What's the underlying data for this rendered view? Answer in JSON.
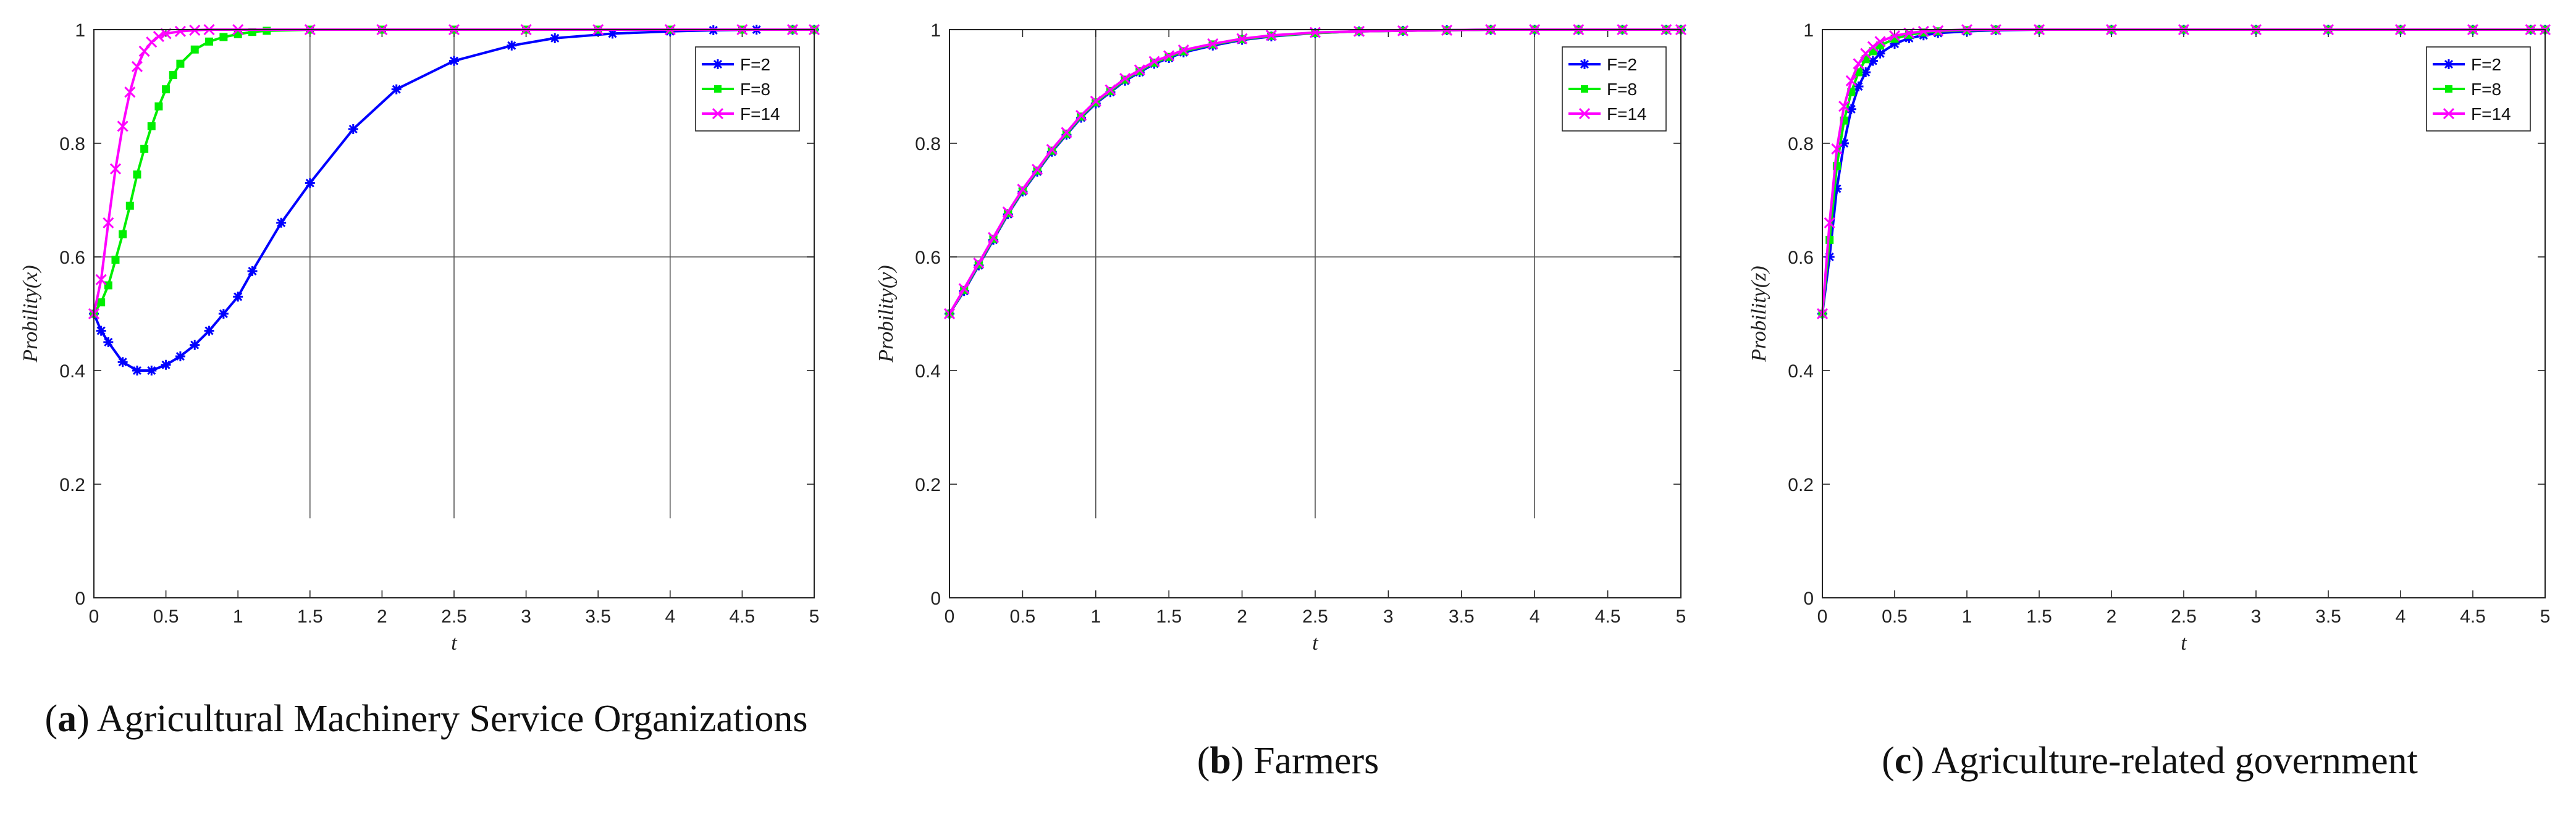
{
  "chart_data": [
    {
      "type": "line",
      "caption_letter": "a",
      "caption_text": "Agricultural Machinery Service Organizations",
      "xlabel": "t",
      "ylabel": "Probility(x)",
      "xlim": [
        0,
        5
      ],
      "ylim": [
        0,
        1
      ],
      "xticks": [
        0,
        0.5,
        1,
        1.5,
        2,
        2.5,
        3,
        3.5,
        4,
        4.5,
        5
      ],
      "xtick_labels": [
        "0",
        "0.5",
        "1",
        "1.5",
        "2",
        "2.5",
        "3",
        "3.5",
        "4",
        "4.5",
        "5"
      ],
      "yticks": [
        0,
        0.2,
        0.4,
        0.6,
        0.8,
        1
      ],
      "ytick_labels": [
        "0",
        "0.2",
        "0.4",
        "0.6",
        "0.8",
        "1"
      ],
      "ref_hline": 0.6,
      "ref_vlines": [
        1.5,
        2.5,
        4
      ],
      "ref_vline_bottom": 0.14,
      "legend": "top-right",
      "series": [
        {
          "name": "F=2",
          "color": "#0000ff",
          "marker": "star",
          "x": [
            0,
            0.05,
            0.1,
            0.2,
            0.3,
            0.4,
            0.5,
            0.6,
            0.7,
            0.8,
            0.9,
            1.0,
            1.1,
            1.3,
            1.5,
            1.8,
            2.1,
            2.5,
            2.9,
            3.2,
            3.6,
            4.0,
            4.3,
            4.6,
            4.85,
            5.0
          ],
          "y": [
            0.5,
            0.47,
            0.45,
            0.415,
            0.4,
            0.4,
            0.41,
            0.425,
            0.445,
            0.47,
            0.5,
            0.53,
            0.575,
            0.66,
            0.73,
            0.825,
            0.895,
            0.945,
            0.972,
            0.985,
            0.993,
            0.997,
            0.999,
            1.0,
            1.0,
            1.0
          ]
        },
        {
          "name": "F=8",
          "color": "#00ee00",
          "marker": "square",
          "x": [
            0,
            0.05,
            0.1,
            0.15,
            0.2,
            0.25,
            0.3,
            0.35,
            0.4,
            0.45,
            0.5,
            0.55,
            0.6,
            0.7,
            0.8,
            0.9,
            1.0,
            1.1,
            1.2,
            1.5,
            2.0,
            2.5,
            3.0,
            3.5,
            4.0,
            4.5,
            4.85,
            5.0
          ],
          "y": [
            0.5,
            0.52,
            0.55,
            0.595,
            0.64,
            0.69,
            0.745,
            0.79,
            0.83,
            0.865,
            0.895,
            0.92,
            0.94,
            0.965,
            0.979,
            0.987,
            0.992,
            0.996,
            0.998,
            1.0,
            1.0,
            1.0,
            1.0,
            1.0,
            1.0,
            1.0,
            1.0,
            1.0
          ]
        },
        {
          "name": "F=14",
          "color": "#ff00ff",
          "marker": "x",
          "x": [
            0,
            0.05,
            0.1,
            0.15,
            0.2,
            0.25,
            0.3,
            0.35,
            0.4,
            0.45,
            0.5,
            0.6,
            0.7,
            0.8,
            1.0,
            1.5,
            2.0,
            2.5,
            3.0,
            3.5,
            4.0,
            4.5,
            4.85,
            5.0
          ],
          "y": [
            0.5,
            0.56,
            0.66,
            0.755,
            0.83,
            0.89,
            0.935,
            0.962,
            0.978,
            0.988,
            0.993,
            0.997,
            0.999,
            1.0,
            1.0,
            1.0,
            1.0,
            1.0,
            1.0,
            1.0,
            1.0,
            1.0,
            1.0,
            1.0
          ]
        }
      ]
    },
    {
      "type": "line",
      "caption_letter": "b",
      "caption_text": "Farmers",
      "xlabel": "t",
      "ylabel": "Probility(y)",
      "xlim": [
        0,
        5
      ],
      "ylim": [
        0,
        1
      ],
      "xticks": [
        0,
        0.5,
        1,
        1.5,
        2,
        2.5,
        3,
        3.5,
        4,
        4.5,
        5
      ],
      "xtick_labels": [
        "0",
        "0.5",
        "1",
        "1.5",
        "2",
        "2.5",
        "3",
        "3.5",
        "4",
        "4.5",
        "5"
      ],
      "yticks": [
        0,
        0.2,
        0.4,
        0.6,
        0.8,
        1
      ],
      "ytick_labels": [
        "0",
        "0.2",
        "0.4",
        "0.6",
        "0.8",
        "1"
      ],
      "ref_hline": 0.6,
      "ref_vlines": [
        1,
        2.5,
        4
      ],
      "ref_vline_bottom": 0.14,
      "legend": "top-right",
      "series": [
        {
          "name": "F=2",
          "color": "#0000ff",
          "marker": "star",
          "x": [
            0,
            0.1,
            0.2,
            0.3,
            0.4,
            0.5,
            0.6,
            0.7,
            0.8,
            0.9,
            1.0,
            1.1,
            1.2,
            1.3,
            1.4,
            1.5,
            1.6,
            1.8,
            2.0,
            2.2,
            2.5,
            2.8,
            3.1,
            3.4,
            3.7,
            4.0,
            4.3,
            4.6,
            4.9,
            5.0
          ],
          "y": [
            0.5,
            0.54,
            0.585,
            0.63,
            0.675,
            0.715,
            0.75,
            0.785,
            0.815,
            0.845,
            0.87,
            0.89,
            0.91,
            0.925,
            0.94,
            0.95,
            0.96,
            0.972,
            0.982,
            0.988,
            0.994,
            0.997,
            0.998,
            0.999,
            1.0,
            1.0,
            1.0,
            1.0,
            1.0,
            1.0
          ]
        },
        {
          "name": "F=8",
          "color": "#00ee00",
          "marker": "square",
          "x": [
            0,
            0.1,
            0.2,
            0.3,
            0.4,
            0.5,
            0.6,
            0.7,
            0.8,
            0.9,
            1.0,
            1.1,
            1.2,
            1.3,
            1.4,
            1.5,
            1.6,
            1.8,
            2.0,
            2.2,
            2.5,
            2.8,
            3.1,
            3.4,
            3.7,
            4.0,
            4.3,
            4.6,
            4.9,
            5.0
          ],
          "y": [
            0.5,
            0.542,
            0.587,
            0.632,
            0.677,
            0.717,
            0.752,
            0.787,
            0.817,
            0.847,
            0.872,
            0.892,
            0.912,
            0.927,
            0.942,
            0.952,
            0.962,
            0.974,
            0.983,
            0.989,
            0.994,
            0.997,
            0.998,
            0.999,
            1.0,
            1.0,
            1.0,
            1.0,
            1.0,
            1.0
          ]
        },
        {
          "name": "F=14",
          "color": "#ff00ff",
          "marker": "x",
          "x": [
            0,
            0.1,
            0.2,
            0.3,
            0.4,
            0.5,
            0.6,
            0.7,
            0.8,
            0.9,
            1.0,
            1.1,
            1.2,
            1.3,
            1.4,
            1.5,
            1.6,
            1.8,
            2.0,
            2.2,
            2.5,
            2.8,
            3.1,
            3.4,
            3.7,
            4.0,
            4.3,
            4.6,
            4.9,
            5.0
          ],
          "y": [
            0.5,
            0.544,
            0.589,
            0.634,
            0.679,
            0.719,
            0.754,
            0.789,
            0.819,
            0.849,
            0.874,
            0.894,
            0.914,
            0.929,
            0.944,
            0.954,
            0.964,
            0.975,
            0.984,
            0.99,
            0.995,
            0.997,
            0.998,
            0.999,
            1.0,
            1.0,
            1.0,
            1.0,
            1.0,
            1.0
          ]
        }
      ]
    },
    {
      "type": "line",
      "caption_letter": "c",
      "caption_text": "Agriculture-related government",
      "xlabel": "t",
      "ylabel": "Probility(z)",
      "xlim": [
        0,
        5
      ],
      "ylim": [
        0,
        1
      ],
      "xticks": [
        0,
        0.5,
        1,
        1.5,
        2,
        2.5,
        3,
        3.5,
        4,
        4.5,
        5
      ],
      "xtick_labels": [
        "0",
        "0.5",
        "1",
        "1.5",
        "2",
        "2.5",
        "3",
        "3.5",
        "4",
        "4.5",
        "5"
      ],
      "yticks": [
        0,
        0.2,
        0.4,
        0.6,
        0.8,
        1
      ],
      "ytick_labels": [
        "0",
        "0.2",
        "0.4",
        "0.6",
        "0.8",
        "1"
      ],
      "legend": "top-right",
      "series": [
        {
          "name": "F=2",
          "color": "#0000ff",
          "marker": "star",
          "x": [
            0,
            0.05,
            0.1,
            0.15,
            0.2,
            0.25,
            0.3,
            0.35,
            0.4,
            0.5,
            0.6,
            0.7,
            0.8,
            1.0,
            1.2,
            1.5,
            2.0,
            2.5,
            3.0,
            3.5,
            4.0,
            4.5,
            4.9,
            5.0
          ],
          "y": [
            0.5,
            0.6,
            0.72,
            0.8,
            0.86,
            0.9,
            0.925,
            0.945,
            0.958,
            0.975,
            0.985,
            0.99,
            0.994,
            0.997,
            0.999,
            1.0,
            1.0,
            1.0,
            1.0,
            1.0,
            1.0,
            1.0,
            1.0,
            1.0
          ]
        },
        {
          "name": "F=8",
          "color": "#00ee00",
          "marker": "square",
          "x": [
            0,
            0.05,
            0.1,
            0.15,
            0.2,
            0.25,
            0.3,
            0.35,
            0.4,
            0.5,
            0.6,
            0.7,
            0.8,
            1.0,
            1.2,
            1.5,
            2.0,
            2.5,
            3.0,
            3.5,
            4.0,
            4.5,
            4.9,
            5.0
          ],
          "y": [
            0.5,
            0.63,
            0.76,
            0.84,
            0.89,
            0.925,
            0.948,
            0.962,
            0.972,
            0.984,
            0.991,
            0.995,
            0.997,
            0.999,
            1.0,
            1.0,
            1.0,
            1.0,
            1.0,
            1.0,
            1.0,
            1.0,
            1.0,
            1.0
          ]
        },
        {
          "name": "F=14",
          "color": "#ff00ff",
          "marker": "x",
          "x": [
            0,
            0.05,
            0.1,
            0.15,
            0.2,
            0.25,
            0.3,
            0.35,
            0.4,
            0.5,
            0.6,
            0.7,
            0.8,
            1.0,
            1.2,
            1.5,
            2.0,
            2.5,
            3.0,
            3.5,
            4.0,
            4.5,
            4.9,
            5.0
          ],
          "y": [
            0.5,
            0.66,
            0.79,
            0.865,
            0.91,
            0.94,
            0.958,
            0.97,
            0.979,
            0.989,
            0.994,
            0.997,
            0.998,
            1.0,
            1.0,
            1.0,
            1.0,
            1.0,
            1.0,
            1.0,
            1.0,
            1.0,
            1.0,
            1.0
          ]
        }
      ]
    }
  ]
}
